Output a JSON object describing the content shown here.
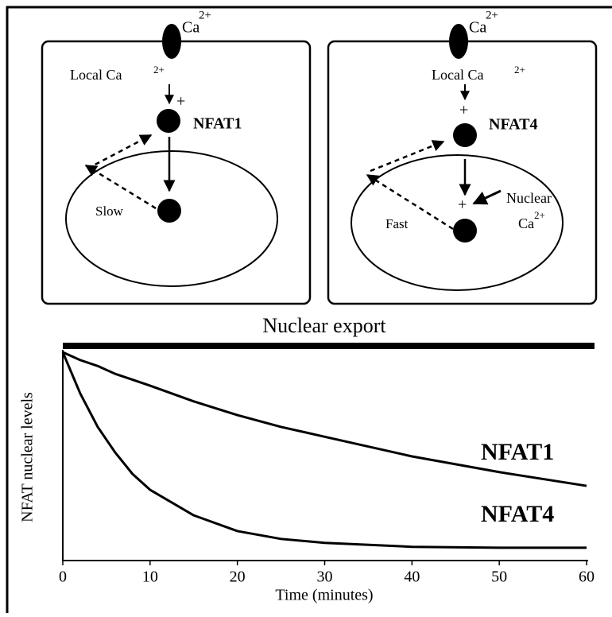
{
  "panels": [
    {
      "ion": "Ca",
      "ion_charge": "2+",
      "local": "Local Ca",
      "local_charge": "2+",
      "plus": "+",
      "protein": "NFAT1",
      "rate": "Slow"
    },
    {
      "ion": "Ca",
      "ion_charge": "2+",
      "local": "Local Ca",
      "local_charge": "2+",
      "plus": "+",
      "protein": "NFAT4",
      "rate": "Fast",
      "nuclear_plus": "+",
      "nuclear": "Nuclear",
      "nuclear_ion": "Ca",
      "nuclear_charge": "2+"
    }
  ],
  "chart_data": {
    "type": "line",
    "title": "Nuclear export",
    "x_label": "Time (minutes)",
    "y_label": "NFAT nuclear levels",
    "x": [
      0,
      2,
      4,
      6,
      8,
      10,
      15,
      20,
      25,
      30,
      40,
      50,
      60
    ],
    "series": [
      {
        "name": "NFAT1",
        "color": "#000000",
        "values": [
          1,
          0.96,
          0.93,
          0.89,
          0.86,
          0.83,
          0.75,
          0.68,
          0.62,
          0.57,
          0.47,
          0.39,
          0.32
        ]
      },
      {
        "name": "NFAT4",
        "color": "#000000",
        "values": [
          1,
          0.79,
          0.62,
          0.49,
          0.38,
          0.3,
          0.17,
          0.09,
          0.05,
          0.03,
          0.01,
          0.005,
          0.005
        ]
      }
    ],
    "xlim": [
      0,
      60
    ],
    "xticks": [
      0,
      10,
      20,
      30,
      40,
      50,
      60
    ],
    "ylim": [
      -0.06,
      1
    ]
  }
}
